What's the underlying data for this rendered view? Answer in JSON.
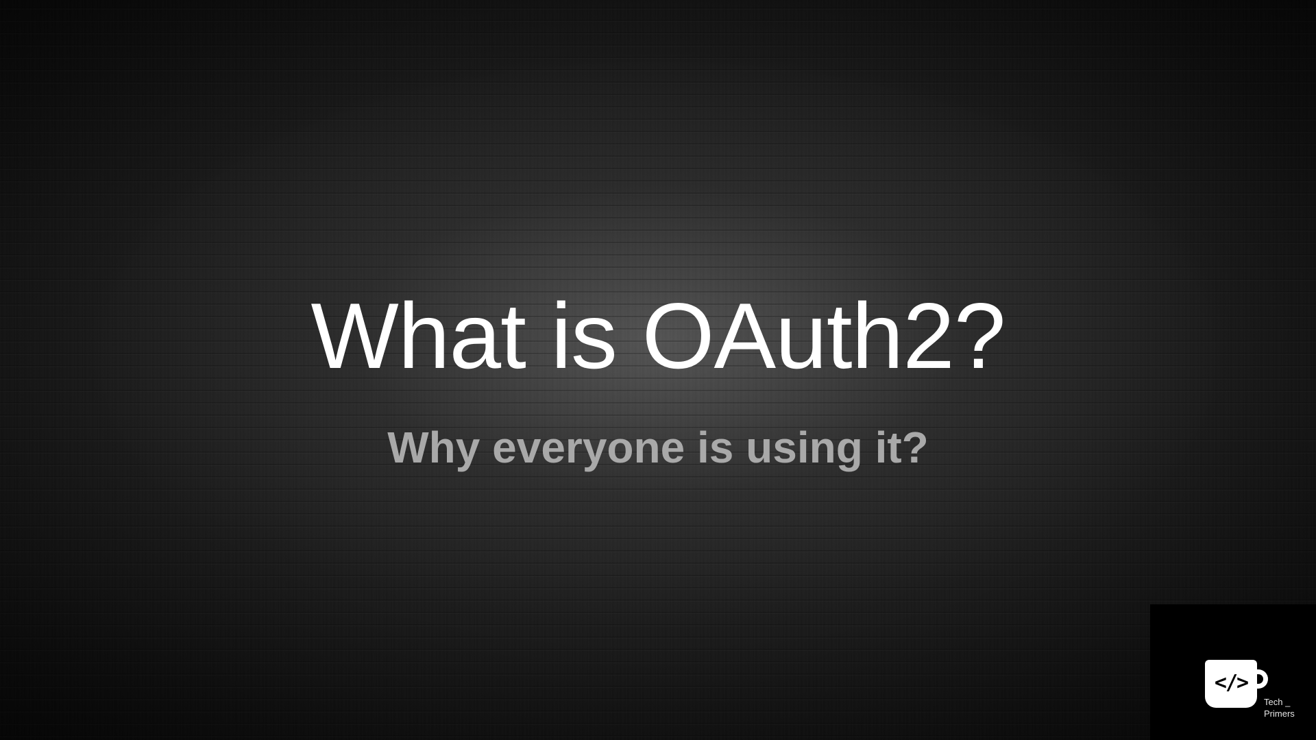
{
  "slide": {
    "title": "What is OAuth2?",
    "subtitle": "Why everyone is using it?",
    "colors": {
      "background": "#1a1a1a",
      "title": "#ffffff",
      "subtitle": "#a9a9a9",
      "logo_background": "#000000"
    }
  },
  "logo": {
    "icon": "code-mug-icon",
    "glyph": "</>",
    "line1": "Tech _",
    "line2": "Primers"
  }
}
